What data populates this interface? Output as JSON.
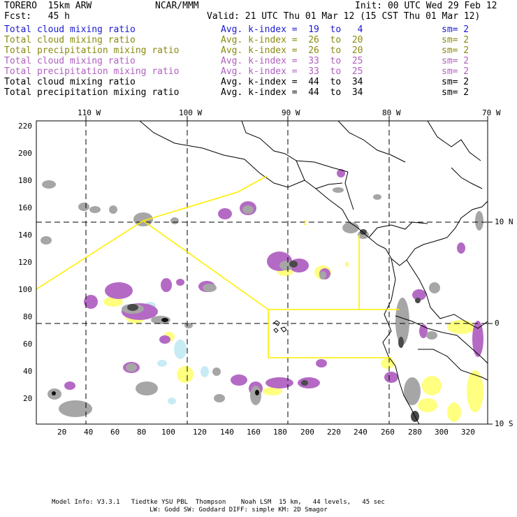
{
  "header": {
    "model_name": "TORERO  15km ARW",
    "org": "NCAR/MMM",
    "init": "Init: 00 UTC Wed 29 Feb 12",
    "fcst": "Fcst:   45 h",
    "valid": "Valid: 21 UTC Thu 01 Mar 12 (15 CST Thu 01 Mar 12)"
  },
  "legend": [
    {
      "field": "Total cloud mixing ratio",
      "kindex": "Avg. k-index =  19  to   4",
      "sm": "sm= 2",
      "color": "#1a1ad0"
    },
    {
      "field": "Total cloud mixing ratio",
      "kindex": "Avg. k-index =  26  to  20",
      "sm": "sm= 2",
      "color": "#8a8a10"
    },
    {
      "field": "Total precipitation mixing ratio",
      "kindex": "Avg. k-index =  26  to  20",
      "sm": "sm= 2",
      "color": "#8a8a10"
    },
    {
      "field": "Total cloud mixing ratio",
      "kindex": "Avg. k-index =  33  to  25",
      "sm": "sm= 2",
      "color": "#b060c0"
    },
    {
      "field": "Total precipitation mixing ratio",
      "kindex": "Avg. k-index =  33  to  25",
      "sm": "sm= 2",
      "color": "#b060c0"
    },
    {
      "field": "Total cloud mixing ratio",
      "kindex": "Avg. k-index =  44  to  34",
      "sm": "sm= 2",
      "color": "#000000"
    },
    {
      "field": "Total precipitation mixing ratio",
      "kindex": "Avg. k-index =  44  to  34",
      "sm": "sm= 2",
      "color": "#000000"
    }
  ],
  "axes": {
    "top_lon": [
      "110 W",
      "100 W",
      "90 W",
      "80 W",
      "70 W"
    ],
    "right_lat": [
      "10 N",
      "0",
      "10 S"
    ],
    "left_y": [
      "220",
      "200",
      "180",
      "160",
      "140",
      "120",
      "100",
      "80",
      "60",
      "40",
      "20"
    ],
    "bottom_x": [
      "20",
      "40",
      "60",
      "80",
      "100",
      "120",
      "140",
      "160",
      "180",
      "200",
      "220",
      "240",
      "260",
      "280",
      "300",
      "320"
    ]
  },
  "map_labels": {
    "region_i": "I",
    "region_r": "R"
  },
  "footer": {
    "line1": "Model Info: V3.3.1   Tiedtke YSU PBL  Thompson    Noah LSM  15 km,   44 levels,   45 sec",
    "line2": "LW: Godd SW: Goddard DIFF: simple KM: 2D Smagor"
  },
  "colors": {
    "gray": "#a6a6a6",
    "dark": "#4a4a4a",
    "black": "#111111",
    "magenta": "#b46ac4",
    "yellow": "#ffff80",
    "cyan": "#c8ecf4",
    "line_yellow": "#ffee00"
  }
}
